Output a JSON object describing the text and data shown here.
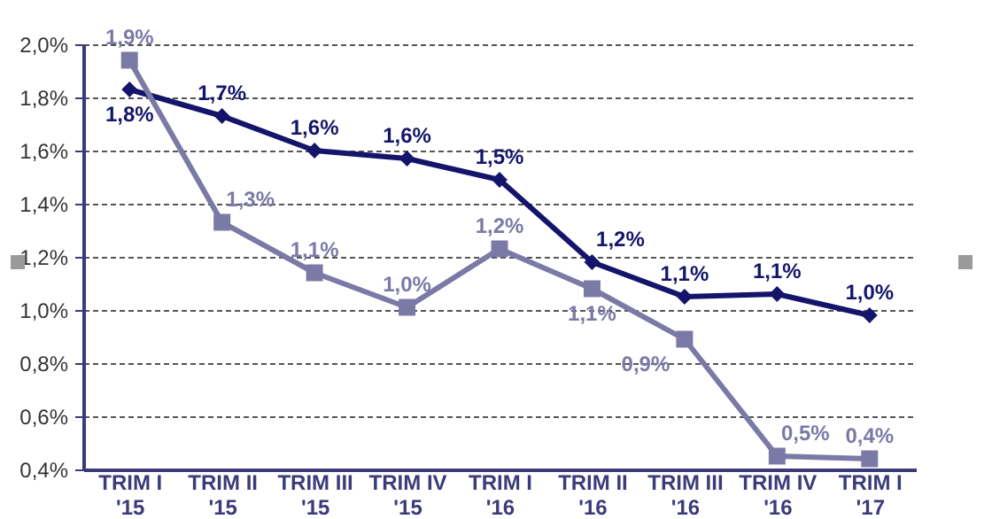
{
  "chart_data": {
    "type": "line",
    "categories": [
      "TRIM I\n'15",
      "TRIM II\n'15",
      "TRIM III\n'15",
      "TRIM IV\n'15",
      "TRIM I\n'16",
      "TRIM II\n'16",
      "TRIM III\n'16",
      "TRIM IV\n'16",
      "TRIM I\n'17"
    ],
    "series": [
      {
        "color": "#14146a",
        "marker": "diamond",
        "values": [
          1.83,
          1.73,
          1.6,
          1.57,
          1.49,
          1.18,
          1.05,
          1.06,
          0.98
        ],
        "value_labels": [
          "1,8%",
          "1,7%",
          "1,6%",
          "1,6%",
          "1,5%",
          "1,2%",
          "1,1%",
          "1,1%",
          "1,0%"
        ]
      },
      {
        "color": "#7b79a6",
        "marker": "square",
        "values": [
          1.94,
          1.33,
          1.14,
          1.01,
          1.23,
          1.08,
          0.89,
          0.45,
          0.44
        ],
        "value_labels": [
          "1,9%",
          "1,3%",
          "1,1%",
          "1,0%",
          "1,2%",
          "1,1%",
          "0,9%",
          "0,5%",
          "0,4%"
        ]
      }
    ],
    "ylim": [
      0.4,
      2.0
    ],
    "yticks": [
      {
        "value": 0.4,
        "label": "0,4%"
      },
      {
        "value": 0.6,
        "label": "0,6%"
      },
      {
        "value": 0.8,
        "label": "0,8%"
      },
      {
        "value": 1.0,
        "label": "1,0%"
      },
      {
        "value": 1.2,
        "label": "1,2%"
      },
      {
        "value": 1.4,
        "label": "1,4%"
      },
      {
        "value": 1.6,
        "label": "1,6%"
      },
      {
        "value": 1.8,
        "label": "1,8%"
      },
      {
        "value": 2.0,
        "label": "2,0%"
      }
    ],
    "grid": "y"
  }
}
